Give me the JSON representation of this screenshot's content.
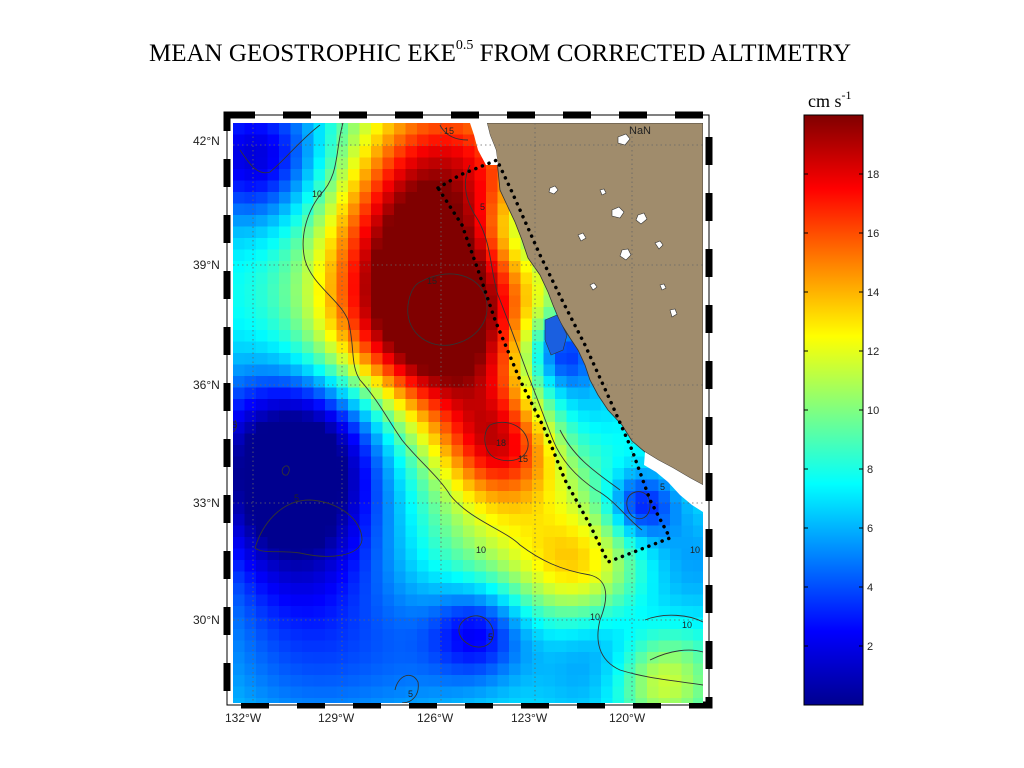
{
  "title": {
    "text": "MEAN GEOSTROPHIC EKE",
    "superscript": "0.5",
    "rest": " FROM CORRECTED ALTIMETRY"
  },
  "colorbar": {
    "unit_text": "cm s",
    "unit_sup": "-1",
    "ticks": [
      "2",
      "4",
      "6",
      "8",
      "10",
      "12",
      "14",
      "16",
      "18"
    ],
    "colors": [
      "#00008f",
      "#0000ff",
      "#0080ff",
      "#00ffff",
      "#80ff80",
      "#ffff00",
      "#ff8000",
      "#ff0000",
      "#800000"
    ]
  },
  "map": {
    "nan_label": "NaN",
    "land_color": "#a08c6c",
    "lat_labels": [
      "42°N",
      "39°N",
      "36°N",
      "33°N",
      "30°N"
    ],
    "lon_labels": [
      "132°W",
      "129°W",
      "126°W",
      "123°W",
      "120°W"
    ],
    "contour_labels": [
      "15",
      "10",
      "5",
      "15",
      "18",
      "15",
      "5",
      "10",
      "5",
      "10",
      "10",
      "5",
      "10",
      "5",
      "5"
    ]
  }
}
